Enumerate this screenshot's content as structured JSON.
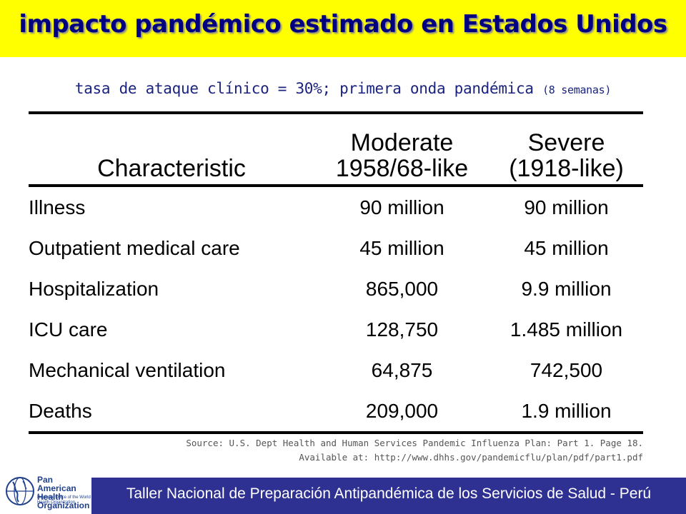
{
  "title": "impacto pandémico estimado en Estados Unidos",
  "subtitle": {
    "main": "tasa de ataque clínico = 30%; primera onda pandémica",
    "note": "(8 semanas)"
  },
  "table": {
    "headers": {
      "characteristic": "Characteristic",
      "moderate_line1": "Moderate",
      "moderate_line2": "1958/68-like",
      "severe_line1": "Severe",
      "severe_line2": "(1918-like)"
    },
    "rows": [
      {
        "characteristic": "Illness",
        "moderate": "90 million",
        "severe": "90 million"
      },
      {
        "characteristic": "Outpatient medical care",
        "moderate": "45 million",
        "severe": "45 million"
      },
      {
        "characteristic": "Hospitalization",
        "moderate": "865,000",
        "severe": "9.9 million"
      },
      {
        "characteristic": "ICU care",
        "moderate": "128,750",
        "severe": "1.485 million"
      },
      {
        "characteristic": "Mechanical ventilation",
        "moderate": "64,875",
        "severe": "742,500"
      },
      {
        "characteristic": "Deaths",
        "moderate": "209,000",
        "severe": "1.9 million"
      }
    ]
  },
  "source": {
    "line1": "Source: U.S. Dept Health and Human Services Pandemic Influenza Plan: Part 1. Page 18.",
    "line2": "Available at: http://www.dhhs.gov/pandemicflu/plan/pdf/part1.pdf"
  },
  "footer": "Taller Nacional de Preparación Antipandémica de los Servicios de Salud - Perú",
  "logo": {
    "org_name": "Pan American Health Organization",
    "regional_office": "Regional Office of the World Health Organization"
  },
  "colors": {
    "title_band": "#ffff00",
    "title_text": "#000080",
    "footer_band": "#2e3192"
  }
}
